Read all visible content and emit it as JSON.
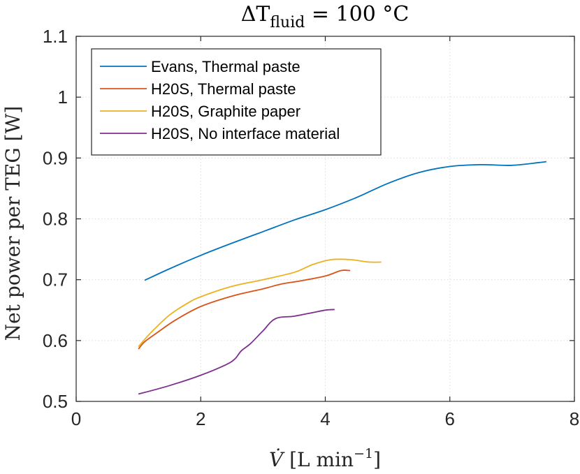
{
  "chart_data": {
    "type": "line",
    "title": "ΔT",
    "title_subscript": "fluid",
    "title_rest": " = 100 °C",
    "xlabel": "V̇",
    "xlabel_rest": " [L min",
    "xlabel_sup": "−1",
    "xlabel_close": "]",
    "ylabel": "Net power per TEG [W]",
    "xlim": [
      0,
      8
    ],
    "ylim": [
      0.5,
      1.1
    ],
    "xticks": [
      0,
      2,
      4,
      6,
      8
    ],
    "xtick_labels": [
      "0",
      "2",
      "4",
      "6",
      "8"
    ],
    "yticks": [
      0.5,
      0.6,
      0.7,
      0.8,
      0.9,
      1.0,
      1.1
    ],
    "ytick_labels": [
      "0.5",
      "0.6",
      "0.7",
      "0.8",
      "0.9",
      "1",
      "1.1"
    ],
    "grid": true,
    "legend_position": "top-left",
    "series": [
      {
        "name": "Evans, Thermal paste",
        "color": "#0072BD",
        "x": [
          1.1,
          1.5,
          2.0,
          2.5,
          3.0,
          3.5,
          4.0,
          4.5,
          5.0,
          5.5,
          6.0,
          6.5,
          7.0,
          7.55
        ],
        "y": [
          0.699,
          0.718,
          0.74,
          0.76,
          0.779,
          0.798,
          0.815,
          0.835,
          0.858,
          0.876,
          0.886,
          0.889,
          0.888,
          0.894
        ]
      },
      {
        "name": "H20S, Thermal paste",
        "color": "#D95319",
        "x": [
          1.0,
          1.1,
          1.3,
          1.6,
          2.0,
          2.5,
          3.0,
          3.3,
          3.6,
          4.0,
          4.25,
          4.4
        ],
        "y": [
          0.586,
          0.598,
          0.613,
          0.634,
          0.656,
          0.673,
          0.685,
          0.693,
          0.698,
          0.706,
          0.715,
          0.715
        ]
      },
      {
        "name": "H20S, Graphite paper",
        "color": "#EDB120",
        "x": [
          1.0,
          1.2,
          1.5,
          1.8,
          2.0,
          2.5,
          3.0,
          3.5,
          3.8,
          4.1,
          4.4,
          4.7,
          4.9
        ],
        "y": [
          0.59,
          0.613,
          0.642,
          0.662,
          0.672,
          0.689,
          0.7,
          0.712,
          0.725,
          0.733,
          0.733,
          0.729,
          0.729
        ]
      },
      {
        "name": "H20S, No interface material",
        "color": "#7E2F8E",
        "x": [
          1.0,
          1.5,
          2.0,
          2.4,
          2.55,
          2.65,
          2.8,
          3.0,
          3.2,
          3.5,
          3.8,
          4.0,
          4.15
        ],
        "y": [
          0.512,
          0.526,
          0.543,
          0.56,
          0.57,
          0.583,
          0.595,
          0.616,
          0.636,
          0.64,
          0.646,
          0.65,
          0.651
        ]
      }
    ]
  }
}
